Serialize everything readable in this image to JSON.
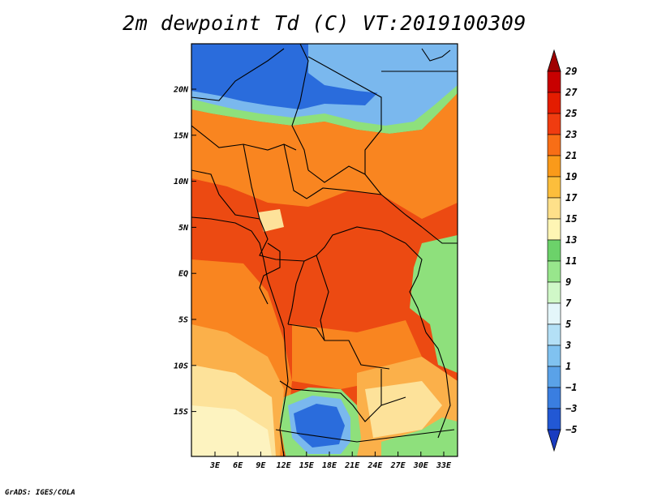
{
  "title": "2m dewpoint Td (C) VT:2019100309",
  "credit": "GrADS: IGES/COLA",
  "lat_labels": [
    "20N",
    "15N",
    "10N",
    "5N",
    "EQ",
    "5S",
    "10S",
    "15S"
  ],
  "lon_labels": [
    "3E",
    "6E",
    "9E",
    "12E",
    "15E",
    "18E",
    "21E",
    "24E",
    "27E",
    "30E",
    "33E"
  ],
  "colorbar": {
    "labels": [
      "29",
      "27",
      "25",
      "23",
      "21",
      "19",
      "17",
      "15",
      "13",
      "11",
      "9",
      "7",
      "5",
      "3",
      "1",
      "−1",
      "−3",
      "−5"
    ],
    "colors": [
      "#a00000",
      "#c80000",
      "#e41c00",
      "#f03c10",
      "#f86e16",
      "#fa9a1a",
      "#fcbe3c",
      "#fee08a",
      "#fef5b4",
      "#6cd26a",
      "#98e68c",
      "#d0f8c8",
      "#e4f6fa",
      "#b4e0f6",
      "#80c2f0",
      "#5aa2e8",
      "#3a7ee0",
      "#2258d4",
      "#1a3cc0"
    ]
  },
  "field_colors": {
    "cold": "#2a6cdc",
    "cool": "#7ab8ee",
    "transition": "#8ee07c",
    "warm": "#f98520",
    "hot": "#ec4a12",
    "mild": "#fbb04a",
    "light": "#fde29a",
    "pale": "#fdf3c0"
  }
}
